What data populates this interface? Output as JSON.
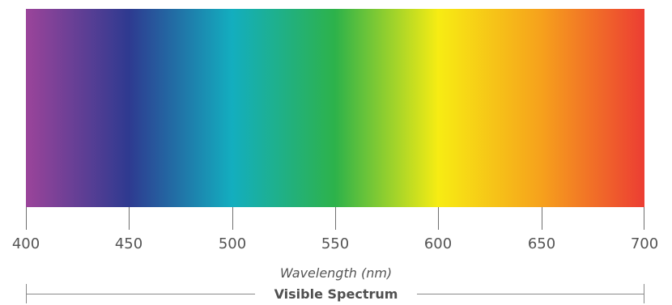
{
  "spectrum": {
    "range_nm": [
      400,
      700
    ],
    "color_stops": [
      {
        "nm": 400,
        "color": "#9b449a"
      },
      {
        "nm": 450,
        "color": "#2e3a90"
      },
      {
        "nm": 500,
        "color": "#13aebf"
      },
      {
        "nm": 550,
        "color": "#2db24a"
      },
      {
        "nm": 600,
        "color": "#f7ec13"
      },
      {
        "nm": 650,
        "color": "#f6a11c"
      },
      {
        "nm": 700,
        "color": "#ec3d33"
      }
    ]
  },
  "axis": {
    "ticks": [
      "400",
      "450",
      "500",
      "550",
      "600",
      "650",
      "700"
    ],
    "title": "Wavelength (nm)"
  },
  "range_indicator": {
    "label": "Visible Spectrum"
  }
}
